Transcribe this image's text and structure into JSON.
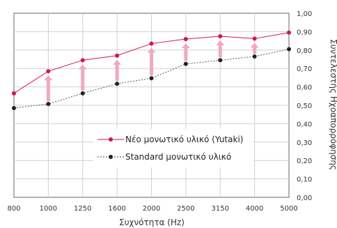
{
  "chart_data": {
    "type": "line",
    "categories": [
      "800",
      "1000",
      "1250",
      "1600",
      "2000",
      "2500",
      "3150",
      "4000",
      "5000"
    ],
    "series": [
      {
        "name": "Νέο μονωτικό υλικό (Yutaki)",
        "color": "#d6134b",
        "line_style": "solid",
        "values": [
          0.565,
          0.685,
          0.745,
          0.77,
          0.835,
          0.86,
          0.875,
          0.862,
          0.895
        ]
      },
      {
        "name": "Standard μονωτικό υλικό",
        "color": "#222222",
        "line_style": "dashed",
        "values": [
          0.485,
          0.507,
          0.565,
          0.617,
          0.647,
          0.725,
          0.745,
          0.765,
          0.805
        ]
      }
    ],
    "xlabel": "Συχνότητα (Hz)",
    "ylabel": "Συντελεστής Ηχοαπορρόφησης",
    "ylim": [
      0,
      1
    ],
    "yticks": [
      "0,00",
      "0,10",
      "0,20",
      "0,30",
      "0,40",
      "0,50",
      "0,60",
      "0,70",
      "0,80",
      "0,90",
      "1,00"
    ],
    "grid": true,
    "legend_position": "bottom-center",
    "arrow_color": "#f0a9bd",
    "grid_color": "#d0d0d0"
  }
}
